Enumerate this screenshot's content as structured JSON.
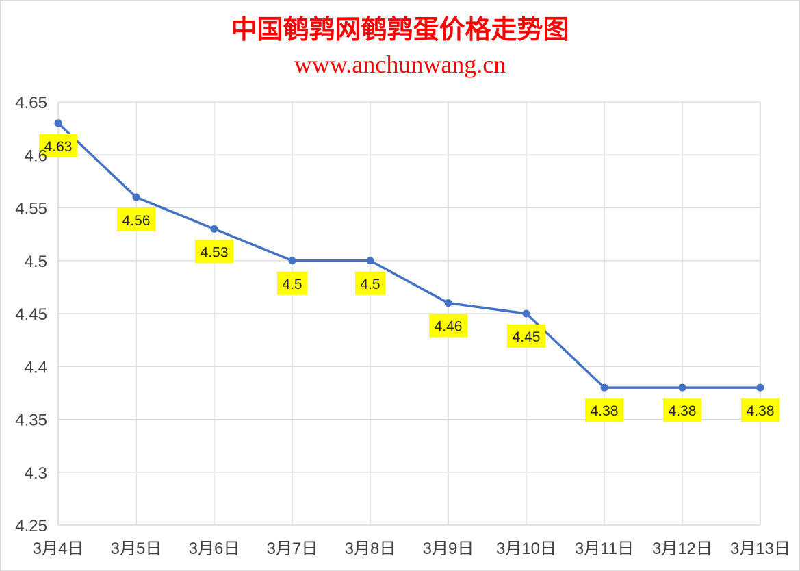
{
  "chart_data": {
    "type": "line",
    "title": "中国鹌鹑网鹌鹑蛋价格走势图",
    "subtitle": "www.anchunwang.cn",
    "categories": [
      "3月4日",
      "3月5日",
      "3月6日",
      "3月7日",
      "3月8日",
      "3月9日",
      "3月10日",
      "3月11日",
      "3月12日",
      "3月13日"
    ],
    "series": [
      {
        "values": [
          4.63,
          4.56,
          4.53,
          4.5,
          4.5,
          4.46,
          4.45,
          4.38,
          4.38,
          4.38
        ],
        "labels": [
          "4.63",
          "4.56",
          "4.53",
          "4.5",
          "4.5",
          "4.46",
          "4.45",
          "4.38",
          "4.38",
          "4.38"
        ]
      }
    ],
    "ylim": [
      4.25,
      4.65
    ],
    "yticks": [
      "4.25",
      "4.3",
      "4.35",
      "4.4",
      "4.45",
      "4.5",
      "4.55",
      "4.6",
      "4.65"
    ],
    "xlabel": "",
    "ylabel": "",
    "grid": true,
    "legend": "none",
    "colors": {
      "line": "#4472c4",
      "label_background": "#ffff00",
      "title": "#ff0000",
      "grid": "#d9d9d9"
    }
  }
}
